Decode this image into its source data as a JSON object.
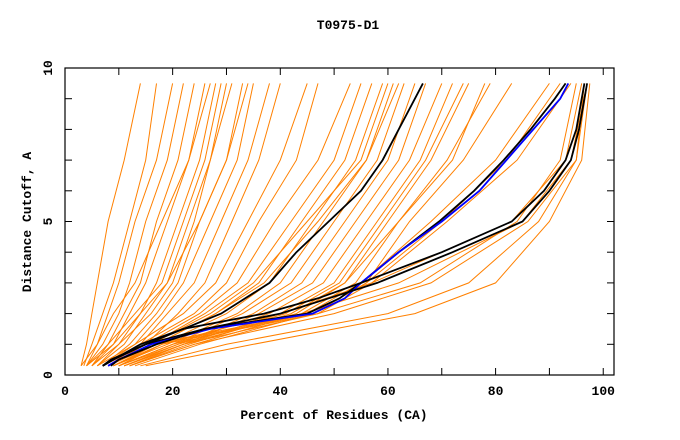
{
  "chart_data": {
    "type": "line",
    "title": "T0975-D1",
    "xlabel": "Percent of Residues (CA)",
    "ylabel": "Distance Cutoff, A",
    "xlim": [
      0,
      102
    ],
    "ylim": [
      0,
      10
    ],
    "xticks": [
      "0",
      "20",
      "40",
      "60",
      "80",
      "100"
    ],
    "yticks": [
      "0",
      "5",
      "10"
    ],
    "grid": false,
    "legend": "none",
    "colors": {
      "background_series": "#ff8000",
      "highlight_black": "#000000",
      "highlight_blue": "#0000ff"
    },
    "background_y": [
      0.3,
      1,
      2,
      3,
      5,
      7,
      9.5
    ],
    "background_series": [
      [
        3,
        4,
        5,
        6,
        8,
        11,
        14
      ],
      [
        3.5,
        5,
        7,
        9,
        12,
        15,
        17
      ],
      [
        4,
        6,
        8,
        10,
        13,
        17,
        20
      ],
      [
        4,
        7,
        10,
        12,
        15,
        19,
        22
      ],
      [
        5,
        8,
        11,
        14,
        17,
        21,
        24
      ],
      [
        5,
        9,
        12,
        15,
        19,
        23,
        26
      ],
      [
        6,
        10,
        14,
        17,
        21,
        25,
        28
      ],
      [
        6,
        11,
        15,
        19,
        23,
        27,
        30
      ],
      [
        7,
        12,
        17,
        21,
        25,
        30,
        33
      ],
      [
        7,
        13,
        18,
        22,
        27,
        32,
        35
      ],
      [
        8,
        14,
        19,
        24,
        29,
        34,
        38
      ],
      [
        8,
        15,
        21,
        26,
        31,
        36,
        40
      ],
      [
        4,
        8,
        13,
        18,
        22,
        26,
        29
      ],
      [
        5,
        10,
        16,
        20,
        24,
        27,
        31
      ],
      [
        3,
        6,
        9,
        13,
        18,
        23,
        27
      ],
      [
        4,
        9,
        14,
        19,
        25,
        30,
        34
      ],
      [
        6,
        13,
        22,
        28,
        34,
        40,
        45
      ],
      [
        7,
        14,
        24,
        30,
        36,
        43,
        47
      ],
      [
        7,
        15,
        25,
        32,
        39,
        47,
        53
      ],
      [
        8,
        16,
        26,
        34,
        42,
        50,
        55
      ],
      [
        8,
        17,
        28,
        36,
        44,
        52,
        57
      ],
      [
        9,
        18,
        30,
        38,
        46,
        54,
        59
      ],
      [
        9,
        19,
        32,
        40,
        48,
        56,
        61
      ],
      [
        10,
        20,
        33,
        42,
        50,
        58,
        63
      ],
      [
        10,
        21,
        35,
        44,
        52,
        60,
        65
      ],
      [
        11,
        22,
        36,
        46,
        54,
        62,
        67
      ],
      [
        9,
        17,
        28,
        37,
        47,
        56,
        62
      ],
      [
        8,
        16,
        27,
        35,
        45,
        55,
        60
      ],
      [
        10,
        20,
        38,
        48,
        56,
        64,
        70
      ],
      [
        11,
        22,
        40,
        50,
        58,
        66,
        72
      ],
      [
        12,
        23,
        42,
        52,
        60,
        68,
        75
      ],
      [
        12,
        24,
        44,
        54,
        62,
        71,
        79
      ],
      [
        13,
        25,
        46,
        56,
        64,
        74,
        83
      ],
      [
        12,
        22,
        43,
        52,
        62,
        72,
        78
      ],
      [
        11,
        21,
        41,
        51,
        59,
        67,
        74
      ],
      [
        8,
        16,
        45,
        55,
        68,
        80,
        90
      ],
      [
        9,
        17,
        46,
        56,
        70,
        82,
        92
      ],
      [
        10,
        18,
        47,
        57,
        71,
        84,
        94
      ],
      [
        9,
        18,
        40,
        57,
        83,
        93,
        96
      ],
      [
        10,
        20,
        44,
        62,
        85,
        94,
        97
      ],
      [
        12,
        24,
        50,
        68,
        86,
        95,
        97
      ],
      [
        14,
        30,
        60,
        75,
        88,
        95,
        96.5
      ],
      [
        15,
        35,
        65,
        80,
        90,
        96,
        97.5
      ],
      [
        11,
        22,
        47,
        66,
        84,
        92,
        95
      ]
    ],
    "highlight_y": [
      0.3,
      0.5,
      1,
      1.5,
      2,
      2.5,
      3,
      4,
      5,
      6,
      7,
      8,
      9,
      9.5
    ],
    "highlight_series": [
      {
        "name": "black-middle",
        "color": "#000000",
        "values": [
          7,
          8.5,
          15,
          22,
          29,
          33.5,
          38,
          43,
          49,
          55,
          59,
          62,
          65,
          66.5
        ]
      },
      {
        "name": "black-upper-right",
        "color": "#000000",
        "values": [
          7,
          9,
          15,
          26,
          45,
          51,
          55,
          62,
          69.5,
          76,
          81.5,
          86.5,
          91,
          93
        ]
      },
      {
        "name": "blue",
        "color": "#0000ff",
        "values": [
          8,
          10,
          16,
          27,
          46,
          52,
          55,
          62,
          70,
          77,
          82,
          87,
          92,
          93.5
        ]
      },
      {
        "name": "black-right-1",
        "color": "#000000",
        "values": [
          7,
          9,
          14,
          22,
          37,
          47,
          55,
          70,
          83,
          89,
          93,
          95,
          96,
          96.5
        ]
      },
      {
        "name": "black-right-2",
        "color": "#000000",
        "values": [
          8.5,
          10,
          17,
          26,
          40,
          49,
          58,
          72,
          85,
          90,
          94,
          95.5,
          96.5,
          97
        ]
      }
    ]
  }
}
